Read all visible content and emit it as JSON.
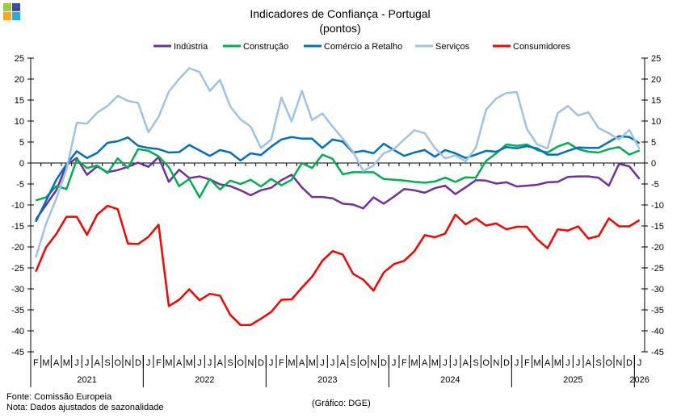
{
  "header": {
    "logo_name": "DGE"
  },
  "footer": {
    "source": "Fonte: Comissão Europeia",
    "note": "Nota: Dados ajustados de sazonalidade",
    "credit": "(Gráfico: DGE)"
  },
  "chart_data": {
    "type": "line",
    "title": "Indicadores de Confiança - Portugal",
    "subtitle": "(pontos)",
    "xlabel": "",
    "ylabel": "",
    "ylim": [
      -45,
      25
    ],
    "yticks": [
      25,
      20,
      15,
      10,
      5,
      0,
      -5,
      -10,
      -15,
      -20,
      -25,
      -30,
      -35,
      -40,
      -45
    ],
    "legend_position": "top",
    "x": [
      "F",
      "M",
      "A",
      "M",
      "J",
      "J",
      "A",
      "S",
      "O",
      "N",
      "D",
      "J",
      "F",
      "M",
      "A",
      "M",
      "J",
      "J",
      "A",
      "S",
      "O",
      "N",
      "D",
      "J",
      "F",
      "M",
      "A",
      "M",
      "J",
      "J",
      "A",
      "S",
      "O",
      "N",
      "D",
      "J",
      "F",
      "M",
      "A",
      "M",
      "J",
      "J",
      "A",
      "S",
      "O",
      "N",
      "D",
      "J",
      "F",
      "M",
      "A",
      "M",
      "J",
      "J",
      "A",
      "S",
      "O",
      "N",
      "D",
      "J"
    ],
    "years": [
      {
        "label": "2021",
        "start": 0,
        "count": 11
      },
      {
        "label": "2022",
        "start": 11,
        "count": 12
      },
      {
        "label": "2023",
        "start": 23,
        "count": 12
      },
      {
        "label": "2024",
        "start": 35,
        "count": 12
      },
      {
        "label": "2025",
        "start": 47,
        "count": 12
      },
      {
        "label": "2026",
        "start": 59,
        "count": 1
      }
    ],
    "series": [
      {
        "name": "Indústria",
        "color": "#7030a0",
        "values": [
          -13.5,
          -10,
          -6.5,
          -0.5,
          1.2,
          -2.8,
          -0.8,
          -2.2,
          -1.7,
          -0.9,
          0.1,
          -0.9,
          1.4,
          -4.5,
          -1.6,
          -3.6,
          -3.2,
          -3.9,
          -5.1,
          -5.5,
          -6.5,
          -7.7,
          -6.5,
          -5.9,
          -4.1,
          -2.8,
          -5.8,
          -8.1,
          -8.1,
          -8.4,
          -9.7,
          -9.9,
          -10.8,
          -8.2,
          -9.7,
          -8.0,
          -6.2,
          -6.5,
          -7.1,
          -6.0,
          -5.4,
          -7.4,
          -5.8,
          -4.1,
          -4.2,
          -4.9,
          -4.6,
          -5.6,
          -5.4,
          -5.2,
          -4.6,
          -4.5,
          -3.3,
          -3.2,
          -3.2,
          -3.5,
          -5.4,
          -0.2,
          -0.8,
          -3.8
        ]
      },
      {
        "name": "Construção",
        "color": "#00b050",
        "values": [
          -8.9,
          -8.2,
          -5.5,
          -6.2,
          0.8,
          -1.2,
          -0.6,
          -2.4,
          1.1,
          -1.2,
          3.3,
          2.9,
          1.6,
          -1.0,
          -5.5,
          -3.8,
          -8.2,
          -3.8,
          -6.3,
          -4.2,
          -5.0,
          -4.0,
          -5.6,
          -3.8,
          -5.3,
          -4.0,
          0.0,
          -1.2,
          2.0,
          1.0,
          -2.7,
          -2.2,
          -2.2,
          -2.2,
          -3.8,
          -4.0,
          -4.2,
          -4.5,
          -4.7,
          -4.4,
          -3.5,
          -4.5,
          -3.4,
          -3.5,
          0.5,
          2.3,
          4.4,
          4.1,
          4.4,
          3.1,
          2.5,
          3.9,
          4.8,
          3.3,
          2.7,
          2.5,
          3.3,
          3.8,
          2.0,
          3.0
        ]
      },
      {
        "name": "Comércio a Retalho",
        "color": "#0070c0",
        "values": [
          -14,
          -9,
          -4,
          -0.3,
          2.8,
          1.2,
          2.4,
          4.8,
          5.2,
          6.1,
          4.1,
          3.6,
          3.3,
          2.5,
          2.6,
          4.3,
          3.0,
          1.7,
          3.1,
          2.5,
          0.6,
          2.3,
          1.9,
          3.9,
          5.6,
          6.2,
          5.8,
          5.8,
          3.6,
          5.6,
          5.1,
          2.5,
          2.9,
          2.3,
          4.6,
          3.1,
          1.7,
          2.5,
          3.1,
          1.5,
          3.1,
          2.3,
          1.2,
          2.0,
          2.9,
          2.7,
          3.8,
          3.5,
          4.0,
          3.5,
          2.0,
          2.0,
          2.9,
          3.7,
          3.6,
          3.6,
          5.0,
          6.4,
          6.2,
          4.7
        ]
      },
      {
        "name": "Serviços",
        "color": "#9dc3e6",
        "values": [
          -22.5,
          -14.5,
          -8.5,
          -1.5,
          9.6,
          9.4,
          12.0,
          13.6,
          16.0,
          14.8,
          14.3,
          7.3,
          11.0,
          17.0,
          20.0,
          22.6,
          21.7,
          17.2,
          19.8,
          13.5,
          10.4,
          8.7,
          3.6,
          5.6,
          15.6,
          9.9,
          17.2,
          10.2,
          11.8,
          8.7,
          5.8,
          2.7,
          -1.9,
          -0.6,
          2.3,
          3.3,
          5.6,
          7.8,
          7.1,
          3.6,
          1.1,
          1.8,
          0.4,
          3.6,
          12.7,
          15.4,
          16.7,
          16.9,
          8.1,
          4.4,
          3.5,
          11.9,
          13.6,
          11.3,
          12.1,
          8.3,
          7.1,
          5.6,
          7.9,
          3.3
        ]
      },
      {
        "name": "Consumidores",
        "color": "#ff0000",
        "values": [
          -25.9,
          -20.1,
          -16.9,
          -12.8,
          -12.8,
          -17.1,
          -12.3,
          -10.2,
          -11.0,
          -19.2,
          -19.3,
          -17.6,
          -14.7,
          -34.1,
          -32.6,
          -30.1,
          -32.7,
          -31.2,
          -31.6,
          -36.2,
          -38.6,
          -38.6,
          -37.1,
          -35.5,
          -32.6,
          -32.5,
          -29.7,
          -27.1,
          -23.3,
          -21.0,
          -21.8,
          -26.4,
          -27.8,
          -30.4,
          -26.1,
          -24.1,
          -23.3,
          -21.0,
          -17.2,
          -17.7,
          -16.8,
          -12.3,
          -14.6,
          -13.2,
          -14.9,
          -14.4,
          -15.8,
          -15.2,
          -15.2,
          -18.2,
          -20.3,
          -15.8,
          -16.1,
          -15.1,
          -18.0,
          -17.4,
          -13.2,
          -15.1,
          -15.1,
          -13.6
        ]
      }
    ]
  }
}
